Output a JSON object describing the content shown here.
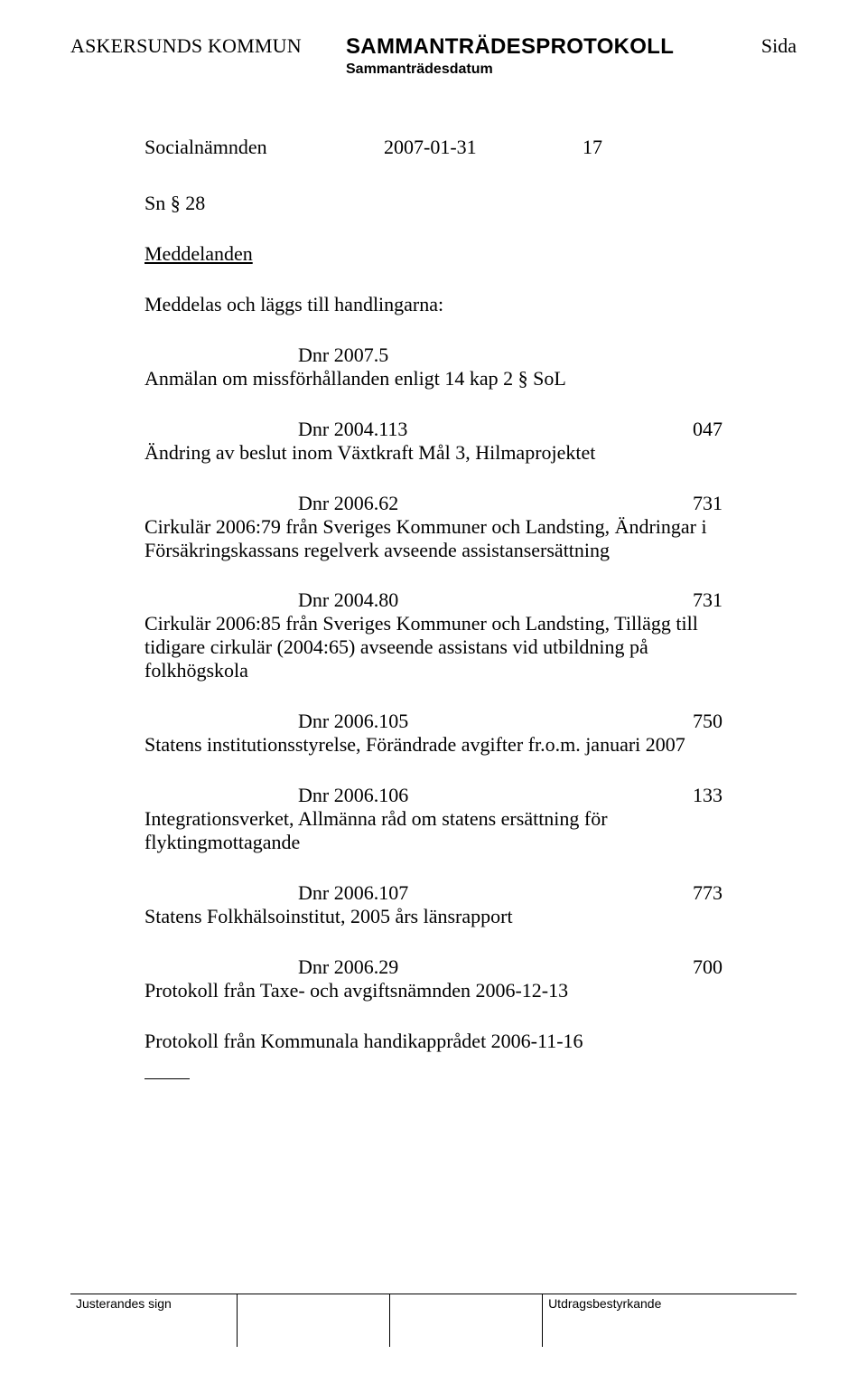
{
  "header": {
    "left": "ASKERSUNDS KOMMUN",
    "center": "SAMMANTRÄDESPROTOKOLL",
    "sub": "Sammanträdesdatum",
    "right": "Sida"
  },
  "topRow": {
    "committee": "Socialnämnden",
    "date": "2007-01-31",
    "page": "17"
  },
  "snLine": "Sn § 28",
  "sectionTitle": "Meddelanden",
  "introLine": "Meddelas och läggs till handlingarna:",
  "items": [
    {
      "dnr": "Dnr 2007.5",
      "code": "",
      "text": "Anmälan om missförhållanden enligt 14 kap 2 § SoL"
    },
    {
      "dnr": "Dnr 2004.113",
      "code": "047",
      "text": "Ändring av beslut inom Växtkraft Mål 3, Hilmaprojektet"
    },
    {
      "dnr": "Dnr 2006.62",
      "code": "731",
      "text": "Cirkulär 2006:79 från Sveriges Kommuner och Landsting, Ändringar i Försäkringskassans regelverk avseende assistansersättning"
    },
    {
      "dnr": "Dnr 2004.80",
      "code": "731",
      "text": "Cirkulär 2006:85 från Sveriges Kommuner och Landsting, Tillägg till tidigare cirkulär (2004:65) avseende assistans vid utbildning på folkhögskola"
    },
    {
      "dnr": "Dnr 2006.105",
      "code": "750",
      "text": "Statens institutionsstyrelse, Förändrade avgifter fr.o.m. januari 2007"
    },
    {
      "dnr": "Dnr 2006.106",
      "code": "133",
      "text": "Integrationsverket, Allmänna råd om statens ersättning för flyktingmottagande"
    },
    {
      "dnr": "Dnr 2006.107",
      "code": "773",
      "text": "Statens Folkhälsoinstitut, 2005 års länsrapport"
    },
    {
      "dnr": "Dnr 2006.29",
      "code": "700",
      "text": "Protokoll från Taxe- och avgiftsnämnden 2006-12-13"
    }
  ],
  "lastLine": "Protokoll från Kommunala handikapprådet 2006-11-16",
  "footer": {
    "c1": "Justerandes sign",
    "c4": "Utdragsbestyrkande"
  }
}
